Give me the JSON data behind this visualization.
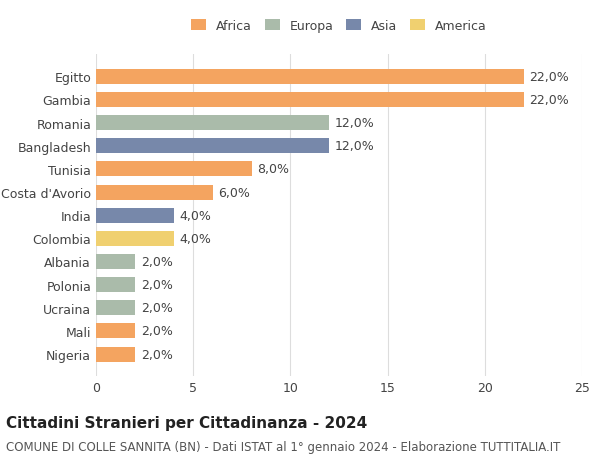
{
  "countries": [
    "Egitto",
    "Gambia",
    "Romania",
    "Bangladesh",
    "Tunisia",
    "Costa d'Avorio",
    "India",
    "Colombia",
    "Albania",
    "Polonia",
    "Ucraina",
    "Mali",
    "Nigeria"
  ],
  "values": [
    22.0,
    22.0,
    12.0,
    12.0,
    8.0,
    6.0,
    4.0,
    4.0,
    2.0,
    2.0,
    2.0,
    2.0,
    2.0
  ],
  "continents": [
    "Africa",
    "Africa",
    "Europa",
    "Asia",
    "Africa",
    "Africa",
    "Asia",
    "America",
    "Europa",
    "Europa",
    "Europa",
    "Africa",
    "Africa"
  ],
  "bar_colors": [
    "#F4A460",
    "#F4A460",
    "#AABBAA",
    "#7788AA",
    "#F4A460",
    "#F4A460",
    "#7788AA",
    "#F0D070",
    "#AABBAA",
    "#AABBAA",
    "#AABBAA",
    "#F4A460",
    "#F4A460"
  ],
  "title": "Cittadini Stranieri per Cittadinanza - 2024",
  "subtitle": "COMUNE DI COLLE SANNITA (BN) - Dati ISTAT al 1° gennaio 2024 - Elaborazione TUTTITALIA.IT",
  "xlim": [
    0,
    25
  ],
  "xticks": [
    0,
    5,
    10,
    15,
    20,
    25
  ],
  "legend_labels": [
    "Africa",
    "Europa",
    "Asia",
    "America"
  ],
  "legend_colors": [
    "#F4A460",
    "#AABBAA",
    "#7788AA",
    "#F0D070"
  ],
  "background_color": "#ffffff",
  "grid_color": "#dddddd",
  "label_fontsize": 9,
  "title_fontsize": 11,
  "subtitle_fontsize": 8.5
}
